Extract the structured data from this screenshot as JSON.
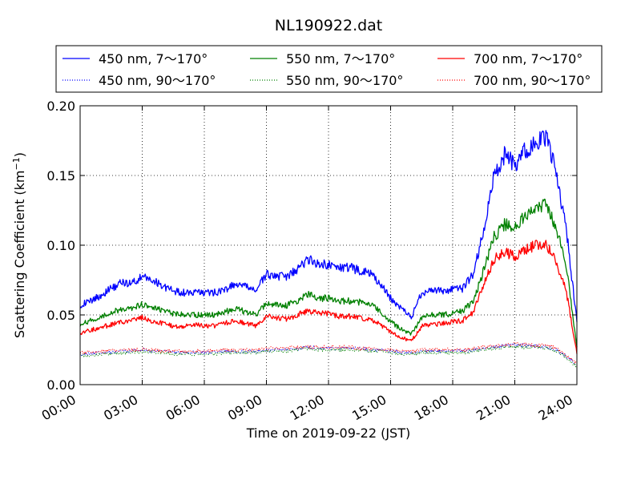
{
  "chart_data": {
    "type": "line",
    "title": "NL190922.dat",
    "xlabel": "Time on 2019-09-22 (JST)",
    "ylabel_main": "Scattering Coefficient (km",
    "ylabel_sup": "−1",
    "ylabel_close": ")",
    "xlim": [
      0,
      24
    ],
    "ylim": [
      0.0,
      0.2
    ],
    "x_ticks": [
      0,
      3,
      6,
      9,
      12,
      15,
      18,
      21,
      24
    ],
    "x_tick_labels": [
      "00:00",
      "03:00",
      "06:00",
      "09:00",
      "12:00",
      "15:00",
      "18:00",
      "21:00",
      "24:00"
    ],
    "y_ticks": [
      0.0,
      0.05,
      0.1,
      0.15,
      0.2
    ],
    "y_tick_labels": [
      "0.00",
      "0.05",
      "0.10",
      "0.15",
      "0.20"
    ],
    "grid": true,
    "legend_position": "top",
    "x": [
      0,
      0.5,
      1,
      1.5,
      2,
      2.5,
      3,
      3.5,
      4,
      4.5,
      5,
      5.5,
      6,
      6.5,
      7,
      7.5,
      8,
      8.5,
      9,
      9.5,
      10,
      10.5,
      11,
      11.5,
      12,
      12.5,
      13,
      13.5,
      14,
      14.5,
      15,
      15.5,
      16,
      16.5,
      17,
      17.5,
      18,
      18.5,
      19,
      19.5,
      20,
      20.5,
      21,
      21.5,
      22,
      22.5,
      23,
      23.5,
      24
    ],
    "series": [
      {
        "name": "450 nm, 7～170°",
        "color": "#0000ff",
        "style": "solid",
        "values": [
          0.057,
          0.06,
          0.064,
          0.069,
          0.073,
          0.073,
          0.077,
          0.075,
          0.071,
          0.067,
          0.066,
          0.066,
          0.066,
          0.066,
          0.068,
          0.072,
          0.07,
          0.068,
          0.079,
          0.078,
          0.077,
          0.083,
          0.09,
          0.087,
          0.086,
          0.084,
          0.084,
          0.082,
          0.08,
          0.072,
          0.062,
          0.055,
          0.048,
          0.066,
          0.068,
          0.067,
          0.068,
          0.069,
          0.08,
          0.11,
          0.15,
          0.165,
          0.157,
          0.168,
          0.172,
          0.178,
          0.152,
          0.11,
          0.045
        ]
      },
      {
        "name": "550 nm, 7～170°",
        "color": "#008000",
        "style": "solid",
        "values": [
          0.043,
          0.046,
          0.049,
          0.052,
          0.054,
          0.055,
          0.058,
          0.055,
          0.053,
          0.051,
          0.05,
          0.05,
          0.05,
          0.05,
          0.052,
          0.055,
          0.052,
          0.05,
          0.058,
          0.057,
          0.057,
          0.06,
          0.065,
          0.062,
          0.062,
          0.06,
          0.06,
          0.059,
          0.058,
          0.052,
          0.045,
          0.04,
          0.036,
          0.048,
          0.05,
          0.05,
          0.051,
          0.053,
          0.06,
          0.082,
          0.106,
          0.115,
          0.112,
          0.122,
          0.127,
          0.13,
          0.112,
          0.084,
          0.027
        ]
      },
      {
        "name": "700 nm, 7～170°",
        "color": "#ff0000",
        "style": "solid",
        "values": [
          0.037,
          0.039,
          0.041,
          0.043,
          0.045,
          0.046,
          0.048,
          0.045,
          0.044,
          0.042,
          0.042,
          0.043,
          0.042,
          0.042,
          0.044,
          0.046,
          0.044,
          0.042,
          0.049,
          0.048,
          0.047,
          0.05,
          0.053,
          0.051,
          0.051,
          0.049,
          0.049,
          0.048,
          0.047,
          0.043,
          0.038,
          0.034,
          0.031,
          0.042,
          0.043,
          0.044,
          0.045,
          0.046,
          0.052,
          0.072,
          0.09,
          0.095,
          0.092,
          0.097,
          0.1,
          0.102,
          0.088,
          0.066,
          0.022
        ]
      },
      {
        "name": "450 nm, 90～170°",
        "color": "#0000ff",
        "style": "dotted",
        "values": [
          0.022,
          0.022,
          0.023,
          0.023,
          0.024,
          0.024,
          0.025,
          0.024,
          0.024,
          0.023,
          0.023,
          0.023,
          0.023,
          0.023,
          0.024,
          0.024,
          0.024,
          0.024,
          0.025,
          0.025,
          0.025,
          0.026,
          0.027,
          0.026,
          0.026,
          0.026,
          0.026,
          0.026,
          0.025,
          0.025,
          0.024,
          0.023,
          0.023,
          0.024,
          0.024,
          0.024,
          0.024,
          0.024,
          0.025,
          0.026,
          0.027,
          0.028,
          0.028,
          0.028,
          0.028,
          0.027,
          0.025,
          0.02,
          0.014
        ]
      },
      {
        "name": "550 nm, 90～170°",
        "color": "#008000",
        "style": "dotted",
        "values": [
          0.021,
          0.021,
          0.022,
          0.022,
          0.023,
          0.023,
          0.024,
          0.023,
          0.023,
          0.022,
          0.022,
          0.022,
          0.022,
          0.022,
          0.023,
          0.023,
          0.023,
          0.023,
          0.024,
          0.024,
          0.024,
          0.025,
          0.026,
          0.025,
          0.025,
          0.025,
          0.025,
          0.025,
          0.024,
          0.024,
          0.023,
          0.022,
          0.022,
          0.023,
          0.023,
          0.023,
          0.023,
          0.023,
          0.024,
          0.025,
          0.026,
          0.027,
          0.027,
          0.027,
          0.027,
          0.026,
          0.024,
          0.019,
          0.013
        ]
      },
      {
        "name": "700 nm, 90～170°",
        "color": "#ff0000",
        "style": "dotted",
        "values": [
          0.023,
          0.023,
          0.024,
          0.024,
          0.025,
          0.025,
          0.025,
          0.025,
          0.024,
          0.024,
          0.024,
          0.024,
          0.024,
          0.024,
          0.025,
          0.025,
          0.025,
          0.025,
          0.026,
          0.026,
          0.026,
          0.027,
          0.027,
          0.027,
          0.027,
          0.027,
          0.027,
          0.026,
          0.026,
          0.025,
          0.025,
          0.024,
          0.024,
          0.025,
          0.025,
          0.025,
          0.025,
          0.025,
          0.026,
          0.027,
          0.028,
          0.029,
          0.029,
          0.029,
          0.028,
          0.028,
          0.026,
          0.021,
          0.015
        ]
      }
    ],
    "legend_items": [
      {
        "label": "450 nm, 7～170°",
        "color": "#0000ff",
        "style": "solid"
      },
      {
        "label": "550 nm, 7～170°",
        "color": "#008000",
        "style": "solid"
      },
      {
        "label": "700 nm, 7～170°",
        "color": "#ff0000",
        "style": "solid"
      },
      {
        "label": "450 nm, 90～170°",
        "color": "#0000ff",
        "style": "dotted"
      },
      {
        "label": "550 nm, 90～170°",
        "color": "#008000",
        "style": "dotted"
      },
      {
        "label": "700 nm, 90～170°",
        "color": "#ff0000",
        "style": "dotted"
      }
    ]
  }
}
